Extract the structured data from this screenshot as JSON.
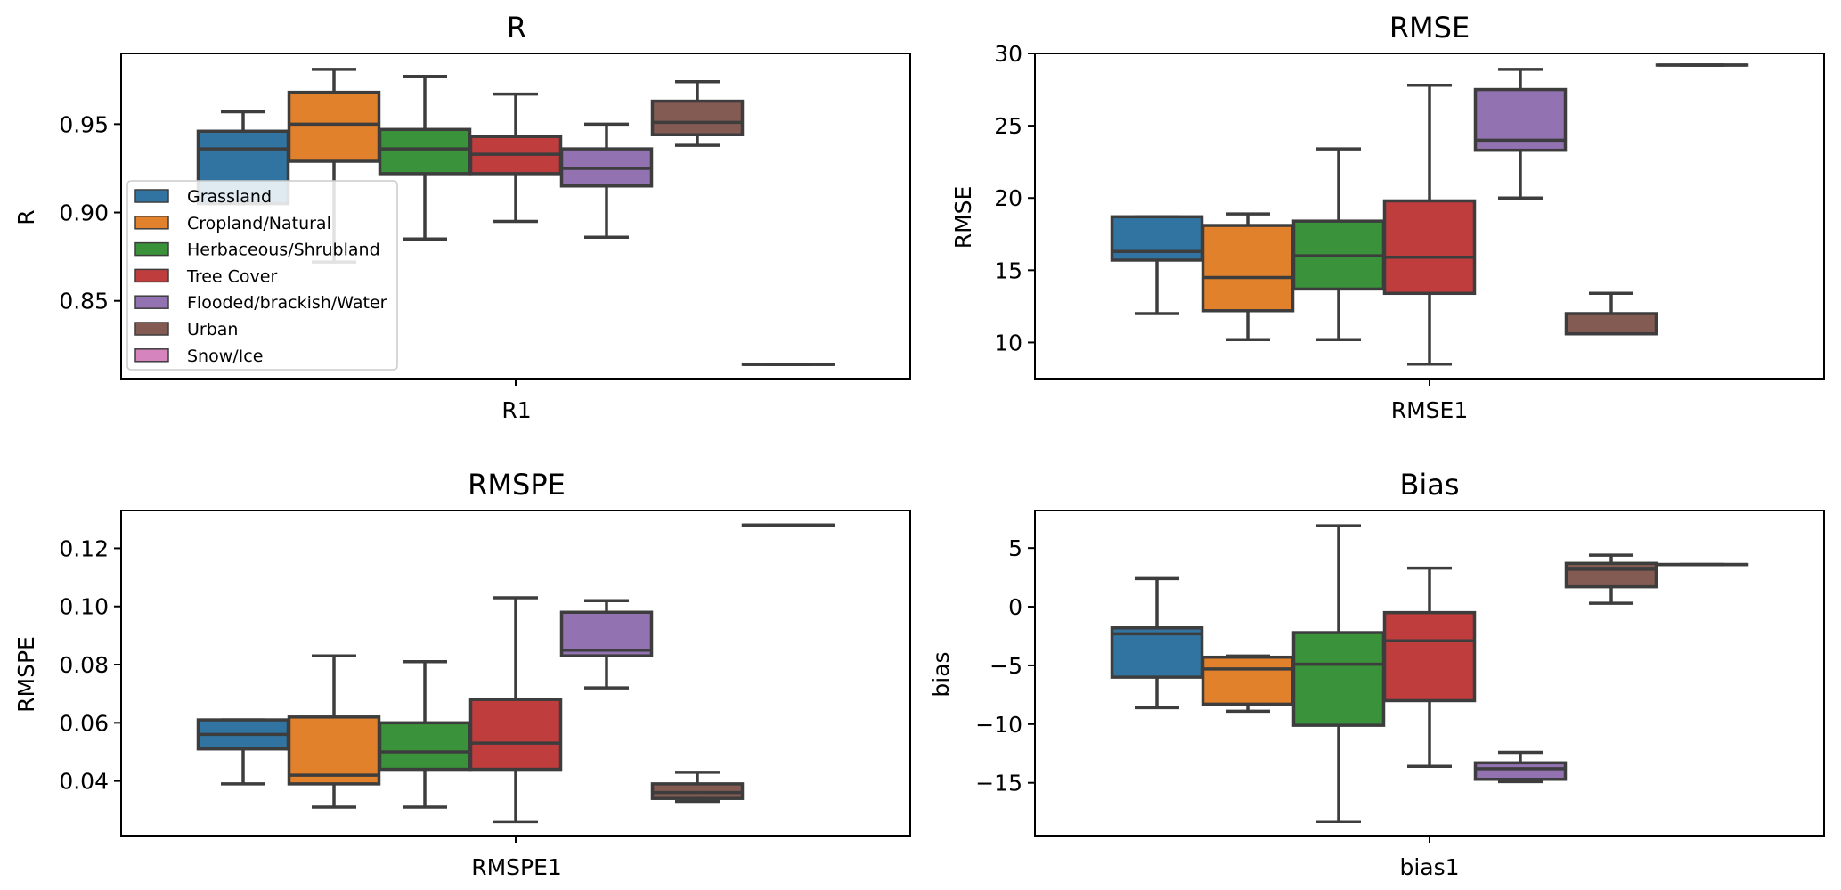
{
  "categories": [
    "Grassland",
    "Cropland/Natural",
    "Herbaceous/Shrubland",
    "Tree Cover",
    "Flooded/brackish/Water",
    "Urban",
    "Snow/Ice"
  ],
  "colors": [
    "#3274a1",
    "#e1812c",
    "#3a923a",
    "#c03d3e",
    "#9372b2",
    "#845b53",
    "#d684bd"
  ],
  "chart_data": [
    {
      "type": "box",
      "title": "R",
      "xlabel": "R1",
      "ylabel": "R",
      "ylim": [
        0.806,
        0.99
      ],
      "yticks": [
        0.85,
        0.9,
        0.95
      ],
      "ytick_labels": [
        "0.85",
        "0.90",
        "0.95"
      ],
      "legend": "lower-left",
      "series": [
        {
          "name": "Grassland",
          "whislo": 0.905,
          "q1": 0.905,
          "med": 0.936,
          "q3": 0.946,
          "whishi": 0.957
        },
        {
          "name": "Cropland/Natural",
          "whislo": 0.872,
          "q1": 0.929,
          "med": 0.95,
          "q3": 0.968,
          "whishi": 0.981
        },
        {
          "name": "Herbaceous/Shrubland",
          "whislo": 0.885,
          "q1": 0.922,
          "med": 0.936,
          "q3": 0.947,
          "whishi": 0.977
        },
        {
          "name": "Tree Cover",
          "whislo": 0.895,
          "q1": 0.922,
          "med": 0.933,
          "q3": 0.943,
          "whishi": 0.967
        },
        {
          "name": "Flooded/brackish/Water",
          "whislo": 0.886,
          "q1": 0.915,
          "med": 0.925,
          "q3": 0.936,
          "whishi": 0.95
        },
        {
          "name": "Urban",
          "whislo": 0.938,
          "q1": 0.944,
          "med": 0.951,
          "q3": 0.963,
          "whishi": 0.974
        },
        {
          "name": "Snow/Ice",
          "whislo": 0.814,
          "q1": 0.814,
          "med": 0.814,
          "q3": 0.814,
          "whishi": 0.814
        }
      ]
    },
    {
      "type": "box",
      "title": "RMSE",
      "xlabel": "RMSE1",
      "ylabel": "RMSE",
      "ylim": [
        7.5,
        30.0
      ],
      "yticks": [
        10,
        15,
        20,
        25,
        30
      ],
      "ytick_labels": [
        "10",
        "15",
        "20",
        "25",
        "30"
      ],
      "series": [
        {
          "name": "Grassland",
          "whislo": 12.0,
          "q1": 15.7,
          "med": 16.3,
          "q3": 18.7,
          "whishi": 18.7
        },
        {
          "name": "Cropland/Natural",
          "whislo": 10.2,
          "q1": 12.2,
          "med": 14.5,
          "q3": 18.1,
          "whishi": 18.9
        },
        {
          "name": "Herbaceous/Shrubland",
          "whislo": 10.2,
          "q1": 13.7,
          "med": 16.0,
          "q3": 18.4,
          "whishi": 23.4
        },
        {
          "name": "Tree Cover",
          "whislo": 8.5,
          "q1": 13.4,
          "med": 15.9,
          "q3": 19.8,
          "whishi": 27.8
        },
        {
          "name": "Flooded/brackish/Water",
          "whislo": 20.0,
          "q1": 23.3,
          "med": 24.0,
          "q3": 27.5,
          "whishi": 28.9
        },
        {
          "name": "Urban",
          "whislo": 10.6,
          "q1": 10.6,
          "med": 10.6,
          "q3": 12.0,
          "whishi": 13.4
        },
        {
          "name": "Snow/Ice",
          "whislo": 29.2,
          "q1": 29.2,
          "med": 29.2,
          "q3": 29.2,
          "whishi": 29.2
        }
      ]
    },
    {
      "type": "box",
      "title": "RMSPE",
      "xlabel": "RMSPE1",
      "ylabel": "RMSPE",
      "ylim": [
        0.0212,
        0.133
      ],
      "yticks": [
        0.04,
        0.06,
        0.08,
        0.1,
        0.12
      ],
      "ytick_labels": [
        "0.04",
        "0.06",
        "0.08",
        "0.10",
        "0.12"
      ],
      "series": [
        {
          "name": "Grassland",
          "whislo": 0.039,
          "q1": 0.051,
          "med": 0.056,
          "q3": 0.061,
          "whishi": 0.061
        },
        {
          "name": "Cropland/Natural",
          "whislo": 0.031,
          "q1": 0.039,
          "med": 0.042,
          "q3": 0.062,
          "whishi": 0.083
        },
        {
          "name": "Herbaceous/Shrubland",
          "whislo": 0.031,
          "q1": 0.044,
          "med": 0.05,
          "q3": 0.06,
          "whishi": 0.081
        },
        {
          "name": "Tree Cover",
          "whislo": 0.026,
          "q1": 0.044,
          "med": 0.053,
          "q3": 0.068,
          "whishi": 0.103
        },
        {
          "name": "Flooded/brackish/Water",
          "whislo": 0.072,
          "q1": 0.083,
          "med": 0.085,
          "q3": 0.098,
          "whishi": 0.102
        },
        {
          "name": "Urban",
          "whislo": 0.033,
          "q1": 0.034,
          "med": 0.036,
          "q3": 0.039,
          "whishi": 0.043
        },
        {
          "name": "Snow/Ice",
          "whislo": 0.128,
          "q1": 0.128,
          "med": 0.128,
          "q3": 0.128,
          "whishi": 0.128
        }
      ]
    },
    {
      "type": "box",
      "title": "Bias",
      "xlabel": "bias1",
      "ylabel": "bias",
      "ylim": [
        -19.5,
        8.2
      ],
      "yticks": [
        -15,
        -10,
        -5,
        0,
        5
      ],
      "ytick_labels": [
        "−15",
        "−10",
        "−5",
        "0",
        "5"
      ],
      "series": [
        {
          "name": "Grassland",
          "whislo": -8.6,
          "q1": -6.0,
          "med": -2.3,
          "q3": -1.8,
          "whishi": 2.4
        },
        {
          "name": "Cropland/Natural",
          "whislo": -8.9,
          "q1": -8.3,
          "med": -5.3,
          "q3": -4.3,
          "whishi": -4.2
        },
        {
          "name": "Herbaceous/Shrubland",
          "whislo": -18.3,
          "q1": -10.1,
          "med": -4.9,
          "q3": -2.2,
          "whishi": 6.9
        },
        {
          "name": "Tree Cover",
          "whislo": -13.6,
          "q1": -8.0,
          "med": -2.9,
          "q3": -0.5,
          "whishi": 3.3
        },
        {
          "name": "Flooded/brackish/Water",
          "whislo": -14.9,
          "q1": -14.7,
          "med": -13.8,
          "q3": -13.3,
          "whishi": -12.4
        },
        {
          "name": "Urban",
          "whislo": 0.3,
          "q1": 1.7,
          "med": 3.2,
          "q3": 3.7,
          "whishi": 4.4
        },
        {
          "name": "Snow/Ice",
          "whislo": 3.6,
          "q1": 3.6,
          "med": 3.6,
          "q3": 3.6,
          "whishi": 3.6
        }
      ]
    }
  ]
}
